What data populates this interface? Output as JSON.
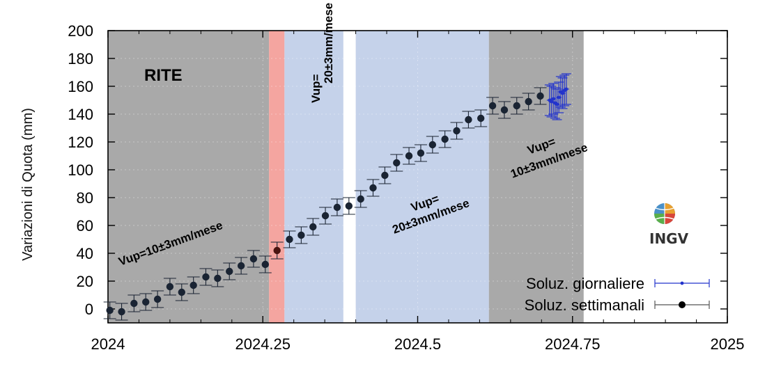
{
  "chart_data": {
    "type": "scatter",
    "station": "RITE",
    "ylabel": "Variazioni di Quota (mm)",
    "xlim": [
      2024,
      2025
    ],
    "ylim": [
      -10,
      200
    ],
    "x_ticks": [
      2024,
      2024.25,
      2024.5,
      2024.75,
      2025
    ],
    "x_tick_labels": [
      "2024",
      "2024.25",
      "2024.5",
      "2024.75",
      "2025"
    ],
    "y_ticks": [
      0,
      20,
      40,
      60,
      80,
      100,
      120,
      140,
      160,
      180,
      200
    ],
    "y_tick_labels": [
      "0",
      "20",
      "40",
      "60",
      "80",
      "100",
      "120",
      "140",
      "160",
      "180",
      "200"
    ],
    "bands": [
      {
        "from": 2024.0,
        "to": 2024.26,
        "color": "#a9a9a9"
      },
      {
        "from": 2024.26,
        "to": 2024.285,
        "color": "#f4a5a0"
      },
      {
        "from": 2024.285,
        "to": 2024.38,
        "color": "#c5d2ea"
      },
      {
        "from": 2024.4,
        "to": 2024.615,
        "color": "#c5d2ea"
      },
      {
        "from": 2024.615,
        "to": 2024.768,
        "color": "#a9a9a9"
      }
    ],
    "series": [
      {
        "name": "Soluz. settimanali",
        "color": "#1a2433",
        "points": [
          {
            "x": 2024.003,
            "y": -1,
            "err": 6
          },
          {
            "x": 2024.022,
            "y": -2,
            "err": 6
          },
          {
            "x": 2024.042,
            "y": 4,
            "err": 6
          },
          {
            "x": 2024.061,
            "y": 5,
            "err": 6
          },
          {
            "x": 2024.08,
            "y": 7,
            "err": 6
          },
          {
            "x": 2024.1,
            "y": 16,
            "err": 6
          },
          {
            "x": 2024.119,
            "y": 12,
            "err": 6
          },
          {
            "x": 2024.138,
            "y": 17,
            "err": 6
          },
          {
            "x": 2024.158,
            "y": 23,
            "err": 6
          },
          {
            "x": 2024.177,
            "y": 22,
            "err": 6
          },
          {
            "x": 2024.196,
            "y": 27,
            "err": 6
          },
          {
            "x": 2024.215,
            "y": 31,
            "err": 6
          },
          {
            "x": 2024.235,
            "y": 36,
            "err": 6
          },
          {
            "x": 2024.254,
            "y": 32,
            "err": 6
          },
          {
            "x": 2024.273,
            "y": 42,
            "err": 6
          },
          {
            "x": 2024.293,
            "y": 50,
            "err": 6
          },
          {
            "x": 2024.312,
            "y": 53,
            "err": 6
          },
          {
            "x": 2024.331,
            "y": 59,
            "err": 6
          },
          {
            "x": 2024.351,
            "y": 67,
            "err": 6
          },
          {
            "x": 2024.37,
            "y": 73,
            "err": 6
          },
          {
            "x": 2024.389,
            "y": 74,
            "err": 6
          },
          {
            "x": 2024.408,
            "y": 79,
            "err": 6
          },
          {
            "x": 2024.428,
            "y": 87,
            "err": 6
          },
          {
            "x": 2024.447,
            "y": 96,
            "err": 6
          },
          {
            "x": 2024.466,
            "y": 105,
            "err": 6
          },
          {
            "x": 2024.486,
            "y": 110,
            "err": 6
          },
          {
            "x": 2024.505,
            "y": 112,
            "err": 6
          },
          {
            "x": 2024.524,
            "y": 118,
            "err": 6
          },
          {
            "x": 2024.544,
            "y": 122,
            "err": 6
          },
          {
            "x": 2024.563,
            "y": 128,
            "err": 6
          },
          {
            "x": 2024.582,
            "y": 136,
            "err": 6
          },
          {
            "x": 2024.602,
            "y": 137,
            "err": 6
          },
          {
            "x": 2024.621,
            "y": 146,
            "err": 6
          },
          {
            "x": 2024.64,
            "y": 143,
            "err": 6
          },
          {
            "x": 2024.66,
            "y": 146,
            "err": 6
          },
          {
            "x": 2024.679,
            "y": 149,
            "err": 6
          },
          {
            "x": 2024.698,
            "y": 153,
            "err": 6
          }
        ]
      },
      {
        "name": "Soluz. giornaliere",
        "color": "#2233cc",
        "points": [
          {
            "x": 2024.713,
            "y": 150,
            "err": 11
          },
          {
            "x": 2024.716,
            "y": 149,
            "err": 11
          },
          {
            "x": 2024.719,
            "y": 151,
            "err": 11
          },
          {
            "x": 2024.722,
            "y": 148,
            "err": 11
          },
          {
            "x": 2024.725,
            "y": 147,
            "err": 11
          },
          {
            "x": 2024.728,
            "y": 152,
            "err": 11
          },
          {
            "x": 2024.731,
            "y": 156,
            "err": 11
          },
          {
            "x": 2024.734,
            "y": 155,
            "err": 11
          },
          {
            "x": 2024.737,
            "y": 157,
            "err": 11
          },
          {
            "x": 2024.74,
            "y": 158,
            "err": 11
          }
        ]
      }
    ],
    "annotations": [
      {
        "text": "Vup=10±3mm/mese",
        "x": 2024.02,
        "y": 31,
        "angle": -20
      },
      {
        "text": "Vup=",
        "x": 2024.342,
        "y": 148,
        "angle": -90
      },
      {
        "text": "20±3mm/mese",
        "x": 2024.362,
        "y": 162,
        "angle": -90
      },
      {
        "text": "Vup=",
        "x": 2024.492,
        "y": 70,
        "angle": -20
      },
      {
        "text": "20±3mm/mese",
        "x": 2024.462,
        "y": 54,
        "angle": -20
      },
      {
        "text": "Vup=",
        "x": 2024.68,
        "y": 111,
        "angle": -20
      },
      {
        "text": "10±3mm/mese",
        "x": 2024.653,
        "y": 94,
        "angle": -20
      }
    ],
    "legend": {
      "position": "bottom-right",
      "entries": [
        {
          "label": "Soluz. giornaliere",
          "series": 1
        },
        {
          "label": "Soluz. settimanali",
          "series": 0
        }
      ]
    },
    "grid": true
  },
  "logo": {
    "text": "INGV",
    "icon": "globe-icon"
  }
}
